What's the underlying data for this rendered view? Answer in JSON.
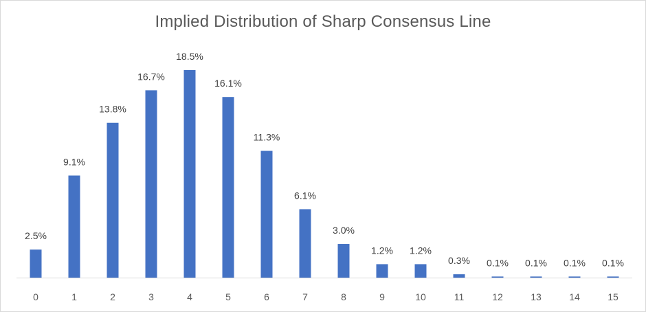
{
  "chart_data": {
    "type": "bar",
    "title": "Implied Distribution of Sharp Consensus Line",
    "xlabel": "",
    "ylabel": "",
    "categories": [
      "0",
      "1",
      "2",
      "3",
      "4",
      "5",
      "6",
      "7",
      "8",
      "9",
      "10",
      "11",
      "12",
      "13",
      "14",
      "15"
    ],
    "values": [
      2.5,
      9.1,
      13.8,
      16.7,
      18.5,
      16.1,
      11.3,
      6.1,
      3.0,
      1.2,
      1.2,
      0.3,
      0.1,
      0.1,
      0.1,
      0.1
    ],
    "data_labels": [
      "2.5%",
      "9.1%",
      "13.8%",
      "16.7%",
      "18.5%",
      "16.1%",
      "11.3%",
      "6.1%",
      "3.0%",
      "1.2%",
      "1.2%",
      "0.3%",
      "0.1%",
      "0.1%",
      "0.1%",
      "0.1%"
    ],
    "ylim": [
      0,
      18.5
    ],
    "grid": false,
    "legend": "none",
    "bar_color": "#4472C4",
    "axis_color": "#d9d9d9"
  }
}
